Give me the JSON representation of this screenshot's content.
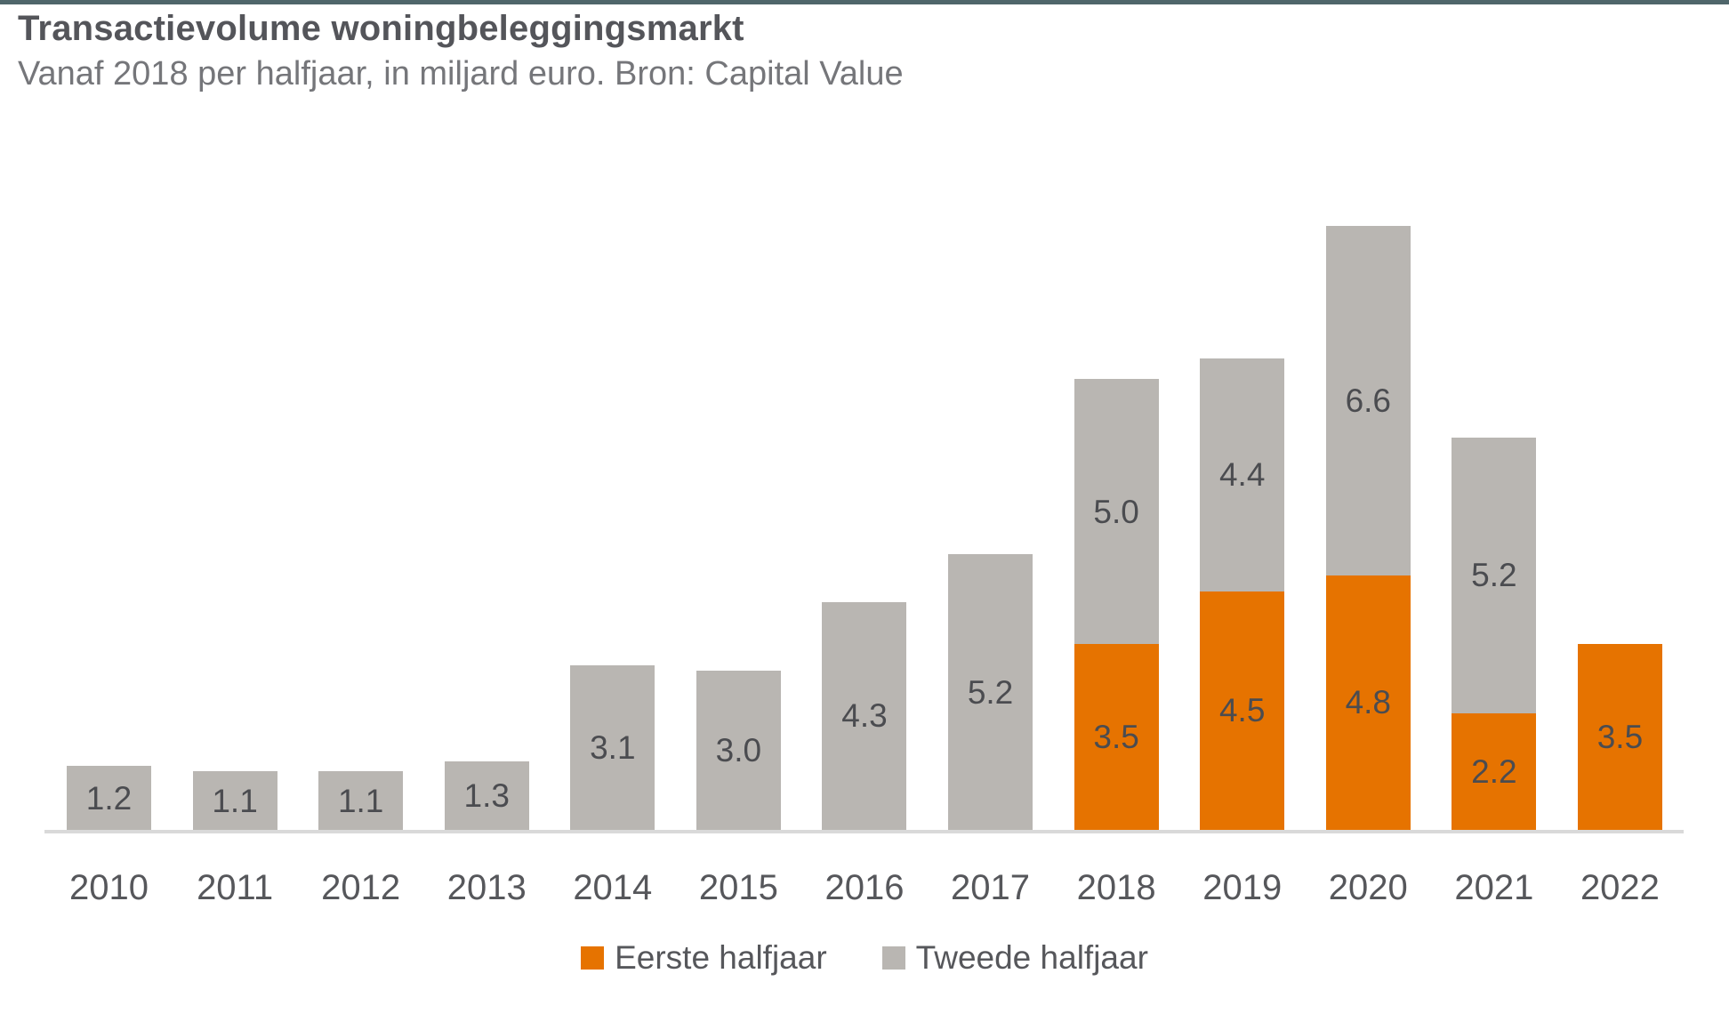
{
  "colors": {
    "topbar": "#4F666B",
    "first_half": "#E67300",
    "second_half": "#B9B6B2",
    "axis_line": "#D9D9D9",
    "title_text": "#54555A",
    "subtitle_text": "#75767A",
    "value_label": "#4B4C50",
    "year_label": "#56575B",
    "legend_text": "#56575B"
  },
  "header": {
    "title": "Transactievolume woningbeleggingsmarkt",
    "subtitle": "Vanaf 2018 per halfjaar, in miljard euro. Bron: Capital Value"
  },
  "legend": {
    "items": [
      {
        "label": "Eerste halfjaar",
        "color_key": "first_half"
      },
      {
        "label": "Tweede halfjaar",
        "color_key": "second_half"
      }
    ]
  },
  "chart_data": {
    "type": "bar",
    "stacked": true,
    "orientation": "vertical",
    "title": "Transactievolume woningbeleggingsmarkt",
    "subtitle": "Vanaf 2018 per halfjaar, in miljard euro. Bron: Capital Value",
    "unit": "miljard euro",
    "categories": [
      "2010",
      "2011",
      "2012",
      "2013",
      "2014",
      "2015",
      "2016",
      "2017",
      "2018",
      "2019",
      "2020",
      "2021",
      "2022"
    ],
    "series": [
      {
        "name": "Eerste halfjaar",
        "color": "#E67300",
        "values": [
          null,
          null,
          null,
          null,
          null,
          null,
          null,
          null,
          3.5,
          4.5,
          4.8,
          2.2,
          3.5
        ]
      },
      {
        "name": "Tweede halfjaar",
        "color": "#B9B6B2",
        "values": [
          1.2,
          1.1,
          1.1,
          1.3,
          3.1,
          3.0,
          4.3,
          5.2,
          5.0,
          4.4,
          6.6,
          5.2,
          null
        ]
      }
    ],
    "totals": [
      1.2,
      1.1,
      1.1,
      1.3,
      3.1,
      3.0,
      4.3,
      5.2,
      8.5,
      8.9,
      11.4,
      7.4,
      3.5
    ],
    "ylim": [
      0,
      11.6
    ],
    "gridlines": false,
    "y_axis_visible": false,
    "value_labels": "inside-center",
    "value_format": "one-decimal-dot",
    "legend_position": "bottom"
  }
}
